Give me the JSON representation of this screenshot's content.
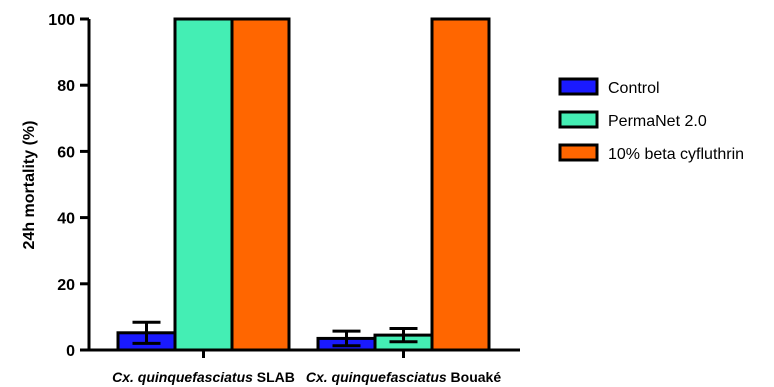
{
  "chart_data": {
    "type": "bar",
    "ylabel": "24h mortality (%)",
    "ylim": [
      0,
      100
    ],
    "yticks": [
      "0",
      "20",
      "40",
      "60",
      "80",
      "100"
    ],
    "categories": [
      {
        "italic": "Cx. quinquefasciatus",
        "suffix": " SLAB"
      },
      {
        "italic": "Cx. quinquefasciatus",
        "suffix": " Bouaké"
      }
    ],
    "series": [
      {
        "name": "Control",
        "color": "#1a1aff",
        "values": [
          5.2,
          3.5
        ],
        "errors": [
          3.2,
          2.2
        ]
      },
      {
        "name": "PermaNet 2.0",
        "color": "#44eeb4",
        "values": [
          100,
          4.5
        ],
        "errors": [
          0,
          2.0
        ]
      },
      {
        "name": "10% beta cyfluthrin",
        "color": "#ff6600",
        "values": [
          100,
          100
        ],
        "errors": [
          0,
          0
        ]
      }
    ],
    "legend_position": "right"
  }
}
